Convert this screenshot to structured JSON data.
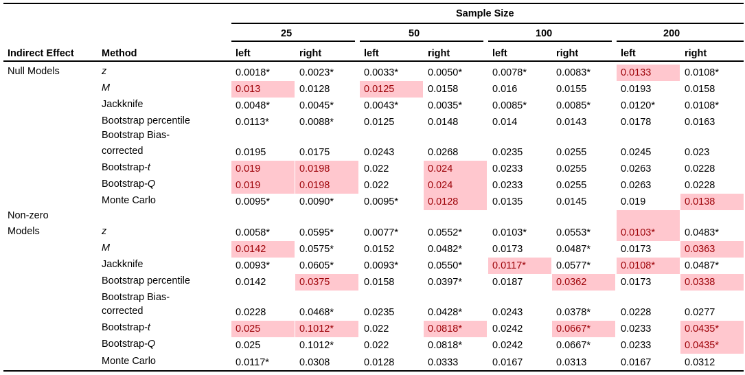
{
  "header": {
    "super": "Sample Size",
    "col_indirect": "Indirect Effect",
    "col_method": "Method",
    "sizes": [
      "25",
      "50",
      "100",
      "200"
    ],
    "sides": [
      "left",
      "right",
      "left",
      "right",
      "left",
      "right",
      "left",
      "right"
    ]
  },
  "groups": [
    {
      "label_lines": [
        "Null Models"
      ]
    },
    {
      "label_lines": [
        "Non-zero",
        "Models"
      ]
    }
  ],
  "methods": [
    {
      "lines": [
        {
          "pre": "",
          "it": "z"
        }
      ]
    },
    {
      "lines": [
        {
          "pre": "",
          "it": "M"
        }
      ]
    },
    {
      "lines": [
        {
          "pre": "Jackknife",
          "it": ""
        }
      ]
    },
    {
      "lines": [
        {
          "pre": "Bootstrap percentile",
          "it": ""
        }
      ]
    },
    {
      "lines": [
        {
          "pre": "Bootstrap Bias-",
          "it": ""
        },
        {
          "pre": "corrected",
          "it": ""
        }
      ]
    },
    {
      "lines": [
        {
          "pre": "Bootstrap-",
          "it": "t"
        }
      ]
    },
    {
      "lines": [
        {
          "pre": "Bootstrap-",
          "it": "Q"
        }
      ]
    },
    {
      "lines": [
        {
          "pre": "Monte Carlo",
          "it": ""
        }
      ]
    }
  ],
  "highlight_color": "#ffc7ce",
  "highlight_text_color": "#9c0006",
  "rows": [
    {
      "values": [
        "0.0018*",
        "0.0023*",
        "0.0033*",
        "0.0050*",
        "0.0078*",
        "0.0083*",
        "0.0133",
        "0.0108*"
      ],
      "hl": [
        false,
        false,
        false,
        false,
        false,
        false,
        true,
        false
      ]
    },
    {
      "values": [
        "0.013",
        "0.0128",
        "0.0125",
        "0.0158",
        "0.016",
        "0.0155",
        "0.0193",
        "0.0158"
      ],
      "hl": [
        true,
        false,
        true,
        false,
        false,
        false,
        false,
        false
      ]
    },
    {
      "values": [
        "0.0048*",
        "0.0045*",
        "0.0043*",
        "0.0035*",
        "0.0085*",
        "0.0085*",
        "0.0120*",
        "0.0108*"
      ],
      "hl": [
        false,
        false,
        false,
        false,
        false,
        false,
        false,
        false
      ]
    },
    {
      "values": [
        "0.0113*",
        "0.0088*",
        "0.0125",
        "0.0148",
        "0.014",
        "0.0143",
        "0.0178",
        "0.0163"
      ],
      "hl": [
        false,
        false,
        false,
        false,
        false,
        false,
        false,
        false
      ]
    },
    {
      "values": [
        "0.0195",
        "0.0175",
        "0.0243",
        "0.0268",
        "0.0235",
        "0.0255",
        "0.0245",
        "0.023"
      ],
      "hl": [
        false,
        false,
        false,
        false,
        false,
        false,
        false,
        false
      ]
    },
    {
      "values": [
        "0.019",
        "0.0198",
        "0.022",
        "0.024",
        "0.0233",
        "0.0255",
        "0.0263",
        "0.0228"
      ],
      "hl": [
        true,
        true,
        false,
        true,
        false,
        false,
        false,
        false
      ]
    },
    {
      "values": [
        "0.019",
        "0.0198",
        "0.022",
        "0.024",
        "0.0233",
        "0.0255",
        "0.0263",
        "0.0228"
      ],
      "hl": [
        true,
        true,
        false,
        true,
        false,
        false,
        false,
        false
      ]
    },
    {
      "values": [
        "0.0095*",
        "0.0090*",
        "0.0095*",
        "0.0128",
        "0.0135",
        "0.0145",
        "0.019",
        "0.0138"
      ],
      "hl": [
        false,
        false,
        false,
        true,
        false,
        false,
        false,
        true
      ]
    },
    {
      "values": [
        "0.0058*",
        "0.0595*",
        "0.0077*",
        "0.0552*",
        "0.0103*",
        "0.0553*",
        "0.0103*",
        "0.0483*"
      ],
      "hl": [
        false,
        false,
        false,
        false,
        false,
        false,
        true,
        false
      ]
    },
    {
      "values": [
        "0.0142",
        "0.0575*",
        "0.0152",
        "0.0482*",
        "0.0173",
        "0.0487*",
        "0.0173",
        "0.0363"
      ],
      "hl": [
        true,
        false,
        false,
        false,
        false,
        false,
        false,
        true
      ]
    },
    {
      "values": [
        "0.0093*",
        "0.0605*",
        "0.0093*",
        "0.0550*",
        "0.0117*",
        "0.0577*",
        "0.0108*",
        "0.0487*"
      ],
      "hl": [
        false,
        false,
        false,
        false,
        true,
        false,
        true,
        false
      ]
    },
    {
      "values": [
        "0.0142",
        "0.0375",
        "0.0158",
        "0.0397*",
        "0.0187",
        "0.0362",
        "0.0173",
        "0.0338"
      ],
      "hl": [
        false,
        true,
        false,
        false,
        false,
        true,
        false,
        true
      ]
    },
    {
      "values": [
        "0.0228",
        "0.0468*",
        "0.0235",
        "0.0428*",
        "0.0243",
        "0.0378*",
        "0.0228",
        "0.0277"
      ],
      "hl": [
        false,
        false,
        false,
        false,
        false,
        false,
        false,
        false
      ]
    },
    {
      "values": [
        "0.025",
        "0.1012*",
        "0.022",
        "0.0818*",
        "0.0242",
        "0.0667*",
        "0.0233",
        "0.0435*"
      ],
      "hl": [
        true,
        true,
        false,
        true,
        false,
        true,
        false,
        true
      ]
    },
    {
      "values": [
        "0.025",
        "0.1012*",
        "0.022",
        "0.0818*",
        "0.0242",
        "0.0667*",
        "0.0233",
        "0.0435*"
      ],
      "hl": [
        false,
        false,
        false,
        false,
        false,
        false,
        false,
        true
      ]
    },
    {
      "values": [
        "0.0117*",
        "0.0308",
        "0.0128",
        "0.0333",
        "0.0167",
        "0.0313",
        "0.0167",
        "0.0312"
      ],
      "hl": [
        false,
        false,
        false,
        false,
        false,
        false,
        false,
        false
      ]
    }
  ]
}
